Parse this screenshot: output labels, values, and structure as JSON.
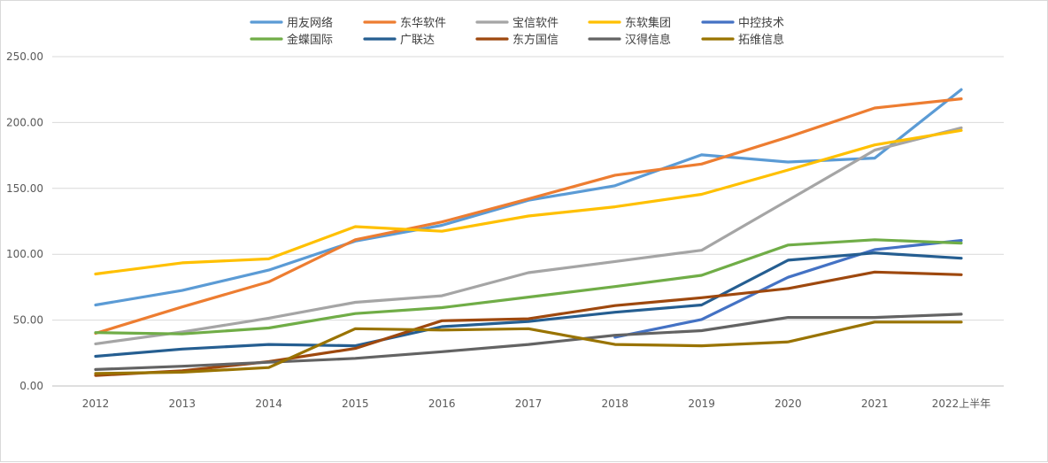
{
  "chart_data": {
    "type": "line",
    "title": "",
    "xlabel": "",
    "ylabel": "",
    "ylim": [
      0,
      250
    ],
    "y_ticks": [
      "0.00",
      "50.00",
      "100.00",
      "150.00",
      "200.00",
      "250.00"
    ],
    "y_tick_values": [
      0,
      50,
      100,
      150,
      200,
      250
    ],
    "grid": true,
    "legend_position": "top-center",
    "categories": [
      "2012",
      "2013",
      "2014",
      "2015",
      "2016",
      "2017",
      "2018",
      "2019",
      "2020",
      "2021",
      "2022上半年"
    ],
    "series": [
      {
        "name": "用友网络",
        "color": "#5b9bd5",
        "values": [
          61.5,
          72.5,
          88,
          110,
          122,
          141,
          152,
          175.5,
          170,
          173,
          225
        ]
      },
      {
        "name": "东华软件",
        "color": "#ed7d31",
        "values": [
          40,
          60,
          79,
          111,
          124.5,
          142,
          160,
          168.5,
          189,
          211,
          218
        ]
      },
      {
        "name": "宝信软件",
        "color": "#a5a5a5",
        "values": [
          32,
          41,
          51.5,
          63.5,
          68.5,
          86,
          94.5,
          103,
          141,
          179,
          196
        ]
      },
      {
        "name": "东软集团",
        "color": "#ffc000",
        "values": [
          85,
          93.5,
          96.5,
          121,
          117.5,
          129,
          136,
          145.5,
          164,
          183,
          194
        ]
      },
      {
        "name": "中控技术",
        "color": "#4472c4",
        "values": [
          null,
          null,
          null,
          null,
          null,
          null,
          37,
          50.5,
          82.5,
          103.5,
          110.5
        ]
      },
      {
        "name": "金蝶国际",
        "color": "#70ad47",
        "values": [
          40.5,
          39.5,
          44,
          55,
          59.5,
          67.5,
          75.5,
          84,
          107,
          111,
          108.5
        ]
      },
      {
        "name": "广联达",
        "color": "#255e91",
        "values": [
          22.5,
          28,
          31.5,
          30.5,
          45,
          49,
          56,
          61.5,
          95.5,
          101,
          97
        ]
      },
      {
        "name": "东方国信",
        "color": "#9e480e",
        "values": [
          8,
          11.5,
          18.5,
          28.5,
          49.5,
          51,
          61,
          67,
          74,
          86.5,
          84.5
        ]
      },
      {
        "name": "汉得信息",
        "color": "#636363",
        "values": [
          12.5,
          15,
          18,
          21,
          26,
          31.5,
          38.5,
          42,
          52,
          52,
          54.5
        ]
      },
      {
        "name": "拓维信息",
        "color": "#997300",
        "values": [
          9.5,
          10.5,
          14,
          43.5,
          42.5,
          43.5,
          31.5,
          30.5,
          33.5,
          48.5,
          48.5
        ]
      }
    ]
  }
}
